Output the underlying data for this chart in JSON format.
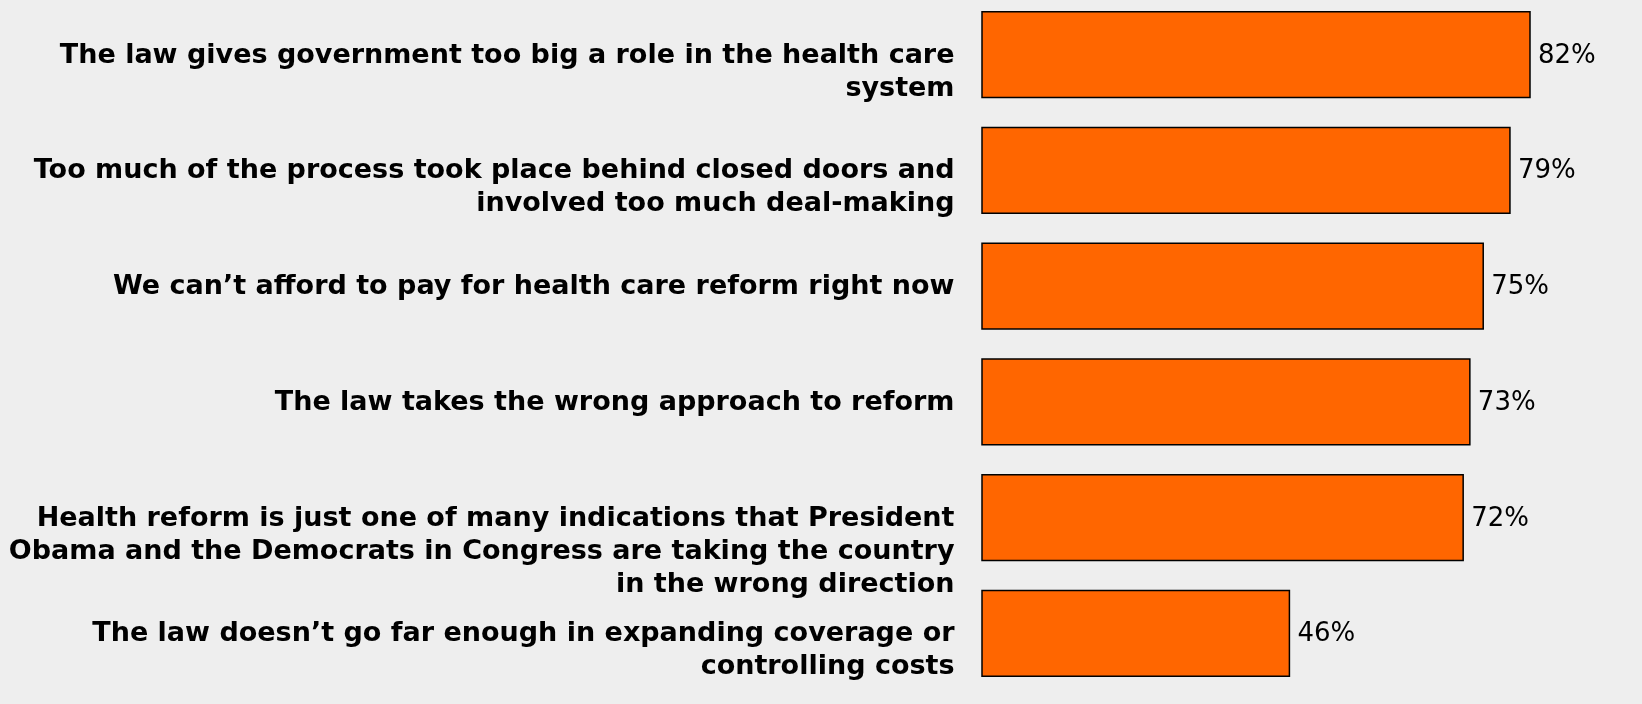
{
  "chart_data": {
    "type": "bar",
    "orientation": "horizontal",
    "categories": [
      "The law gives government too big a role in the health care system",
      "Too much of the process took place behind closed doors and involved too much deal-making",
      "We can’t afford to pay for health care reform right now",
      "The law takes the wrong approach to reform",
      "Health reform is just one of many indications that President Obama and the Democrats in Congress are taking the country in the wrong direction",
      "The law doesn’t go far enough in expanding coverage or controlling costs"
    ],
    "values": [
      82,
      79,
      75,
      73,
      72,
      46
    ],
    "value_labels": [
      "82%",
      "79%",
      "75%",
      "73%",
      "72%",
      "46%"
    ],
    "color": "#ff6600",
    "tick_labels": "y"
  }
}
